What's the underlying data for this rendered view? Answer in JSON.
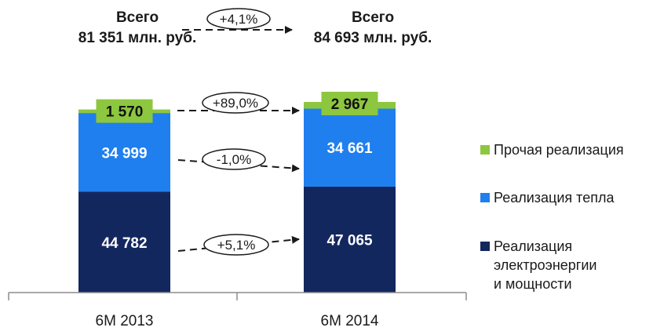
{
  "header": {
    "total_left": {
      "label": "Всего",
      "value": "81 351 млн. руб."
    },
    "total_right": {
      "label": "Всего",
      "value": "84 693 млн. руб."
    },
    "total_change": "+4,1%"
  },
  "chart_data": {
    "type": "bar",
    "stacked": true,
    "categories": [
      "6М 2013",
      "6М 2014"
    ],
    "series": [
      {
        "name": "Реализация электроэнергии и мощности",
        "values": [
          44782,
          47065
        ],
        "labels": [
          "44 782",
          "47 065"
        ],
        "color": "#13275f"
      },
      {
        "name": "Реализация тепла",
        "values": [
          34999,
          34661
        ],
        "labels": [
          "34 999",
          "34 661"
        ],
        "color": "#1f7fee"
      },
      {
        "name": "Прочая реализация",
        "values": [
          1570,
          2967
        ],
        "labels": [
          "1 570",
          "2 967"
        ],
        "color": "#8dc63f"
      }
    ],
    "changes": [
      "+5,1%",
      "-1,0%",
      "+89,0%"
    ],
    "totals": [
      81351,
      84693
    ],
    "legend_position": "right",
    "legend": [
      {
        "label": "Прочая реализация",
        "color": "#8dc63f"
      },
      {
        "label": "Реализация тепла",
        "color": "#1f7fee"
      },
      {
        "label": "Реализация\nэлектроэнергии\nи мощности",
        "color": "#13275f"
      }
    ],
    "ylim": [
      0,
      84693
    ],
    "grid": false
  }
}
